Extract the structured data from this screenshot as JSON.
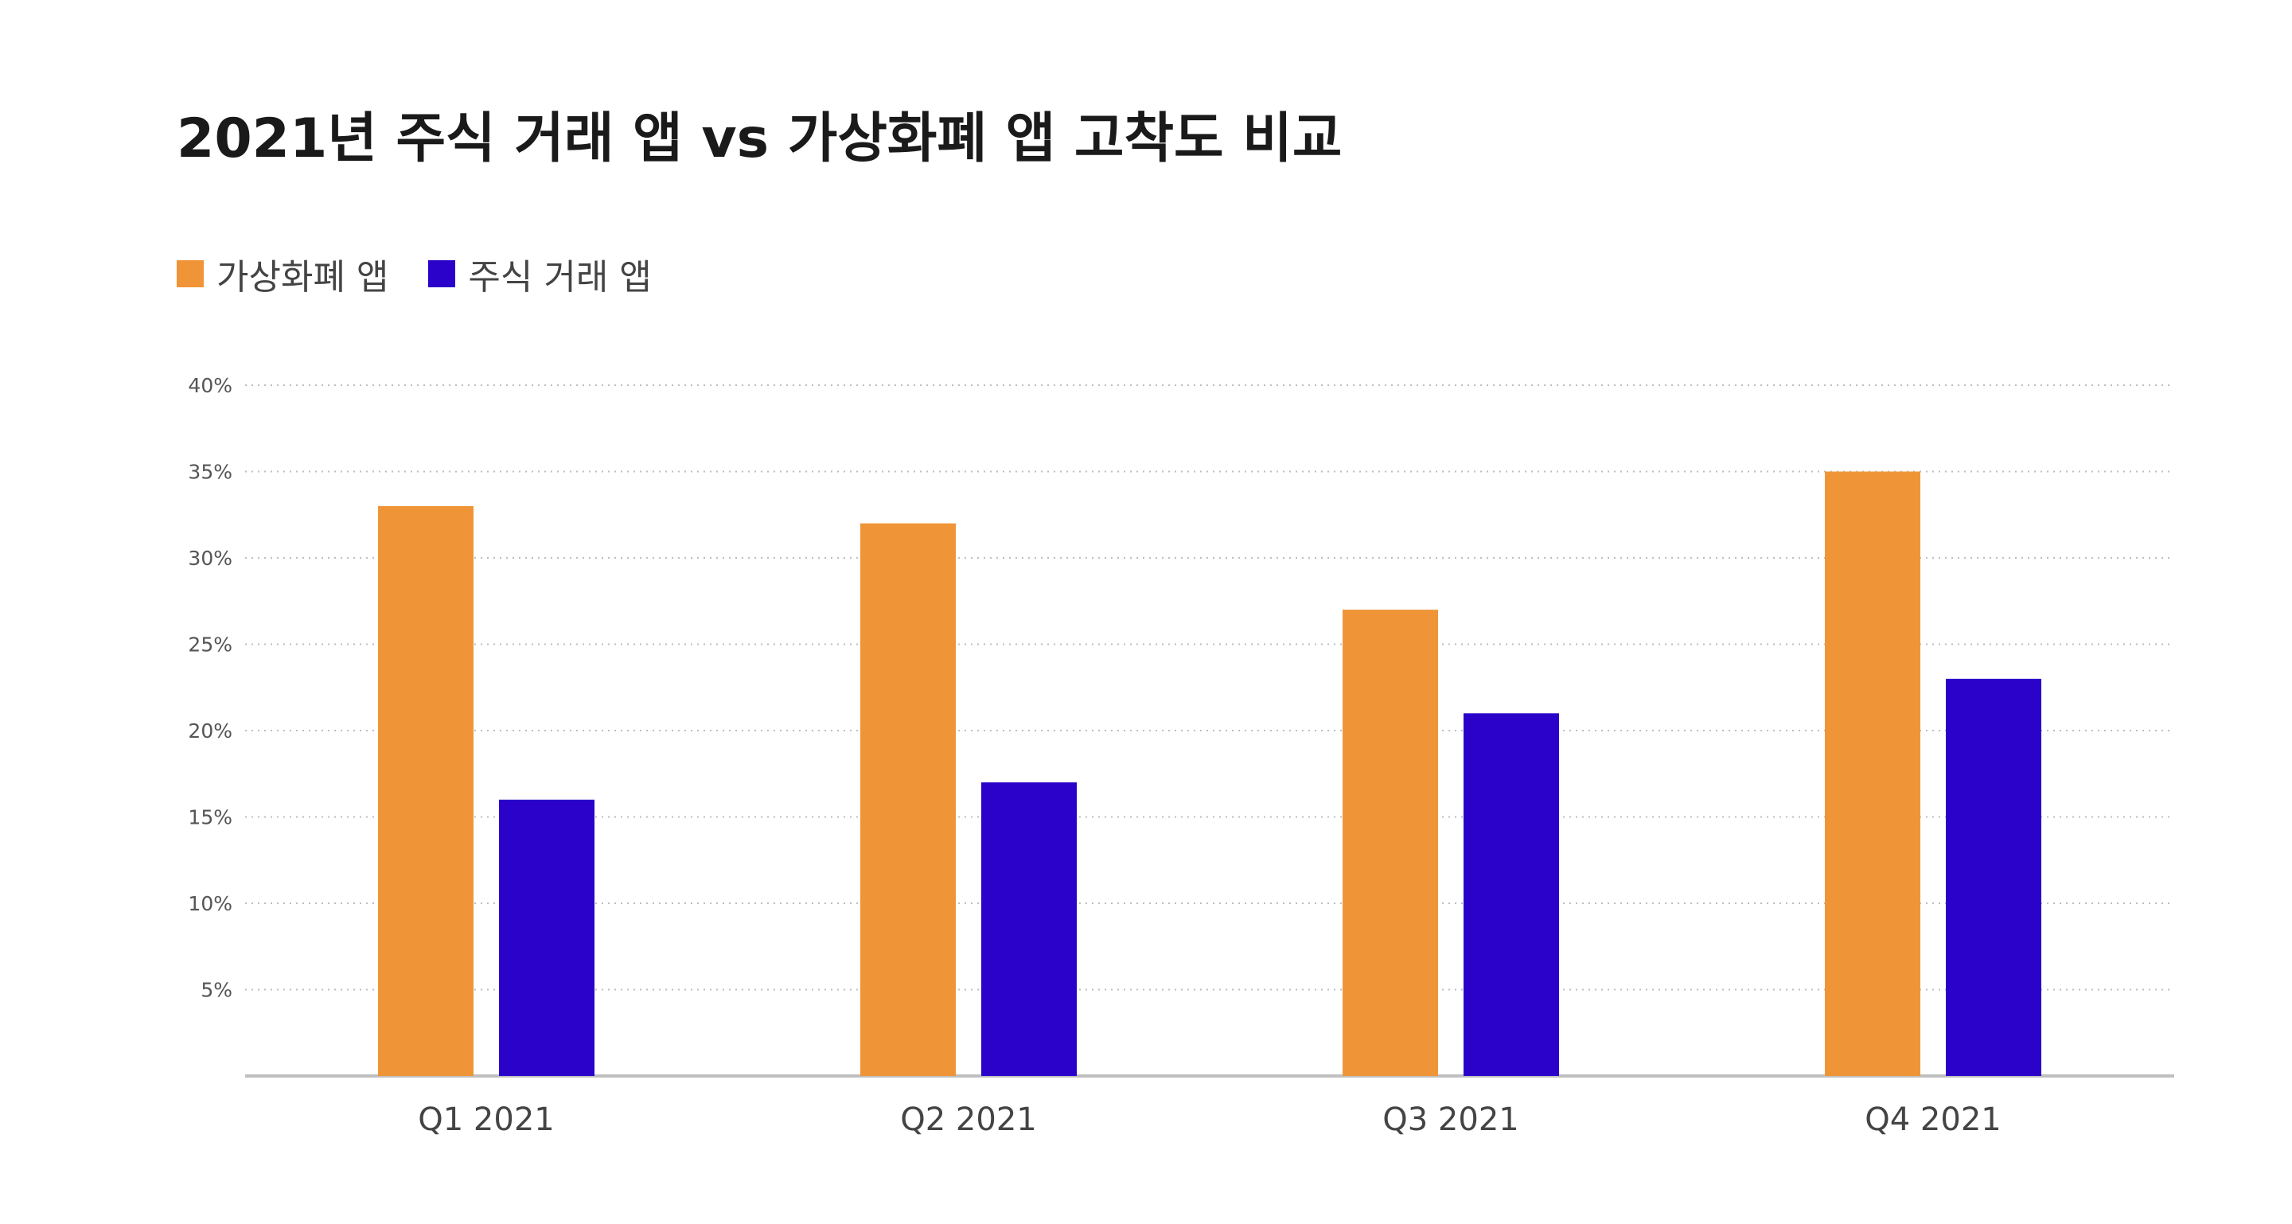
{
  "title": "2021년 주식 거래 앱 vs 가상화폐 앱 고착도 비교",
  "legend": [
    {
      "name": "가상화폐 앱",
      "color": "#F09537"
    },
    {
      "name": "주식 거래 앱",
      "color": "#2A02C9"
    }
  ],
  "chart_data": {
    "type": "bar",
    "categories": [
      "Q1 2021",
      "Q2 2021",
      "Q3 2021",
      "Q4 2021"
    ],
    "series": [
      {
        "name": "가상화폐 앱",
        "color": "#F09537",
        "values": [
          33,
          32,
          27,
          35
        ]
      },
      {
        "name": "주식 거래 앱",
        "color": "#2A02C9",
        "values": [
          16,
          17,
          21,
          23
        ]
      }
    ],
    "yticks": [
      5,
      10,
      15,
      20,
      25,
      30,
      35,
      40
    ],
    "ytick_labels": [
      "5%",
      "10%",
      "15%",
      "20%",
      "25%",
      "30%",
      "35%",
      "40%"
    ],
    "ylim": [
      0,
      40
    ],
    "grid": true,
    "legend_position": "top-left"
  }
}
